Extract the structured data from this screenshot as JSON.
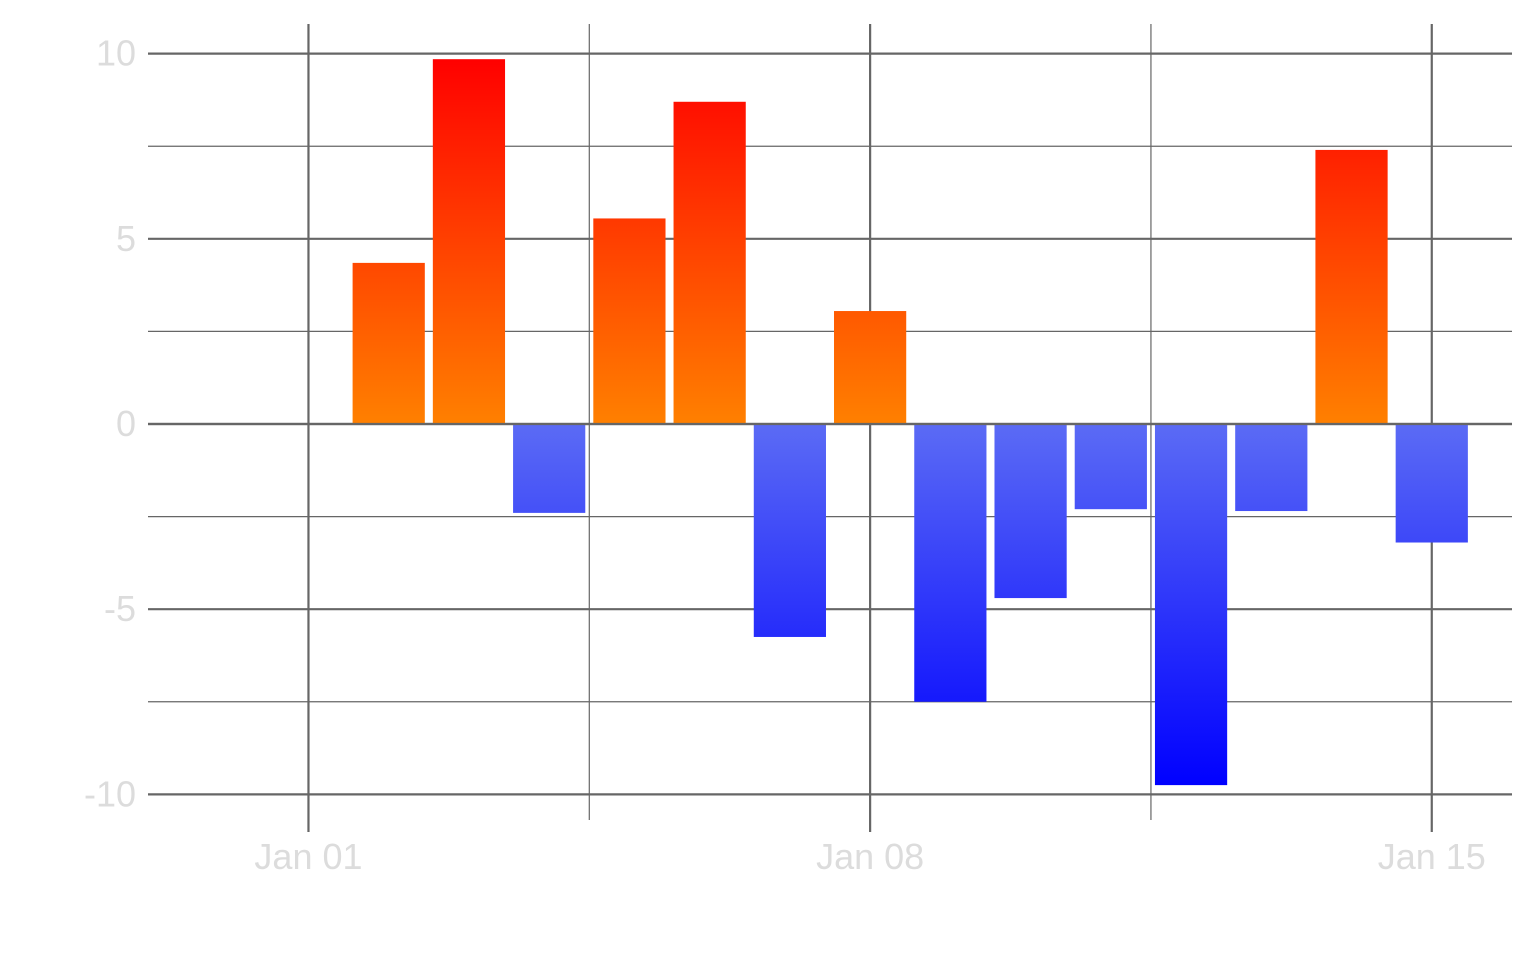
{
  "chart_data": {
    "type": "bar",
    "title": "",
    "xlabel": "",
    "ylabel": "",
    "x": [
      "2024-01-01",
      "2024-01-02",
      "2024-01-03",
      "2024-01-04",
      "2024-01-05",
      "2024-01-06",
      "2024-01-07",
      "2024-01-08",
      "2024-01-09",
      "2024-01-10",
      "2024-01-11",
      "2024-01-12",
      "2024-01-13",
      "2024-01-14",
      "2024-01-15"
    ],
    "values": [
      -0.05,
      4.35,
      9.85,
      -2.4,
      5.55,
      8.7,
      -5.75,
      3.05,
      -7.5,
      -4.7,
      -2.3,
      -9.75,
      -2.35,
      7.4,
      -3.2
    ],
    "x_tick_labels": [
      "Jan 01",
      "Jan 08",
      "Jan 15"
    ],
    "x_tick_dates": [
      "2024-01-01",
      "2024-01-08",
      "2024-01-15"
    ],
    "y_ticks": [
      -10,
      -5,
      0,
      5,
      10
    ],
    "y_tick_labels": [
      "-10",
      "-5",
      "0",
      "5",
      "10"
    ],
    "ylim": [
      -10.8,
      10.8
    ],
    "xlim": [
      "2023-12-30",
      "2024-01-16"
    ],
    "grid": true,
    "colors": {
      "positive_top": "#ff0000",
      "positive_base": "#ff8000",
      "negative_base": "#5b6bf5",
      "negative_bottom": "#0000ff",
      "gridline": "#666666",
      "tick_label": "#dcdcdc"
    }
  }
}
